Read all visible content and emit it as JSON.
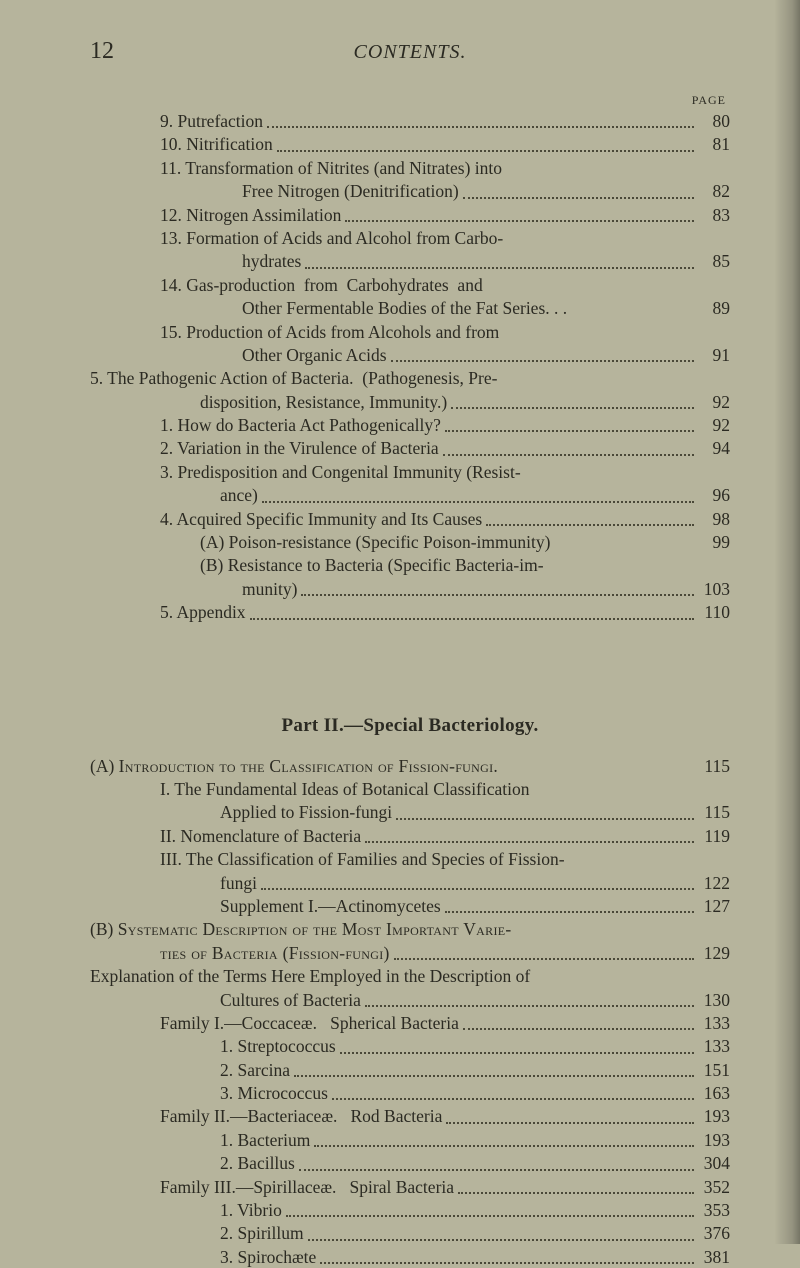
{
  "page_header": {
    "page_number": "12",
    "running_title": "CONTENTS.",
    "column_header": "PAGE"
  },
  "upper": [
    {
      "indent": "indent-a",
      "text": "9. Putrefaction",
      "page": "80"
    },
    {
      "indent": "indent-a",
      "text": "10. Nitrification",
      "page": "81"
    },
    {
      "indent": "indent-a",
      "text": "11. Transformation of Nitrites (and Nitrates) into",
      "nopage": true
    },
    {
      "indent": "indent-b",
      "text": "Free Nitrogen (Denitrification)",
      "page": "82"
    },
    {
      "indent": "indent-a",
      "text": "12. Nitrogen Assimilation",
      "page": "83"
    },
    {
      "indent": "indent-a",
      "text": "13. Formation of Acids and Alcohol from Carbo-",
      "nopage": true
    },
    {
      "indent": "indent-b",
      "text": "hydrates",
      "page": "85"
    },
    {
      "indent": "indent-a",
      "text": "14. Gas-production  from  Carbohydrates  and",
      "nopage": true
    },
    {
      "indent": "indent-b",
      "text": "Other Fermentable Bodies of the Fat Series. . .",
      "page": "89",
      "nodots": true
    },
    {
      "indent": "indent-a",
      "text": "15. Production of Acids from Alcohols and from",
      "nopage": true
    },
    {
      "indent": "indent-b",
      "text": "Other Organic Acids",
      "page": "91"
    },
    {
      "indent": "",
      "text": "5. The Pathogenic Action of Bacteria.  (Pathogenesis, Pre-",
      "nopage": true
    },
    {
      "indent": "indent-c",
      "text": "disposition, Resistance, Immunity.)",
      "page": "92"
    },
    {
      "indent": "indent-a2",
      "text": "1. How do Bacteria Act Pathogenically?",
      "page": "92"
    },
    {
      "indent": "indent-a2",
      "text": "2. Variation in the Virulence of Bacteria",
      "page": "94"
    },
    {
      "indent": "indent-a2",
      "text": "3. Predisposition and Congenital Immunity (Resist-",
      "nopage": true
    },
    {
      "indent": "indent-d",
      "text": "ance)",
      "page": "96"
    },
    {
      "indent": "indent-a2",
      "text": "4. Acquired Specific Immunity and Its Causes",
      "page": "98"
    },
    {
      "indent": "indent-c",
      "text": "(A) Poison-resistance (Specific Poison-immunity)",
      "page": "99",
      "nodots": true
    },
    {
      "indent": "indent-c",
      "text": "(B) Resistance to Bacteria (Specific Bacteria-im-",
      "nopage": true
    },
    {
      "indent": "indent-b",
      "text": "munity)",
      "page": "103"
    },
    {
      "indent": "indent-a2",
      "text": "5. Appendix",
      "page": "110"
    }
  ],
  "part_title": "Part II.—Special Bacteriology.",
  "lower": [
    {
      "indent": "",
      "text": "(A) <span class='sc'>Introduction to the Classification of Fission-fungi</span>.",
      "page": "115",
      "nodots": true,
      "html": true
    },
    {
      "indent": "indent-a2",
      "text": "I. The Fundamental Ideas of Botanical Classification",
      "nopage": true
    },
    {
      "indent": "indent-d",
      "text": "Applied to Fission-fungi",
      "page": "115"
    },
    {
      "indent": "indent-a2",
      "text": "II. Nomenclature of Bacteria",
      "page": "119"
    },
    {
      "indent": "indent-a",
      "text": "III. The Classification of Families and Species of Fission-",
      "nopage": true
    },
    {
      "indent": "indent-d",
      "text": "fungi",
      "page": "122"
    },
    {
      "indent": "indent-d",
      "text": "Supplement I.—Actinomycetes",
      "page": "127"
    },
    {
      "indent": "",
      "text": "(B) <span class='sc'>Systematic Description of the Most Important Varie-</span>",
      "nopage": true,
      "html": true
    },
    {
      "indent": "indent-a2",
      "text": "<span class='sc'>ties of Bacteria (Fission-fungi)</span>",
      "page": "129",
      "html": true
    },
    {
      "indent": "",
      "text": "Explanation of the Terms Here Employed in the Description of",
      "nopage": true
    },
    {
      "indent": "indent-d",
      "text": "Cultures of Bacteria",
      "page": "130"
    },
    {
      "indent": "indent-a",
      "text": "Family I.—Coccaceæ.   Spherical Bacteria",
      "page": "133"
    },
    {
      "indent": "indent-d",
      "text": "1. Streptococcus",
      "page": "133"
    },
    {
      "indent": "indent-d",
      "text": "2. Sarcina",
      "page": "151"
    },
    {
      "indent": "indent-d",
      "text": "3. Micrococcus",
      "page": "163"
    },
    {
      "indent": "indent-a",
      "text": "Family II.—Bacteriaceæ.   Rod Bacteria",
      "page": "193"
    },
    {
      "indent": "indent-d",
      "text": "1. Bacterium",
      "page": "193"
    },
    {
      "indent": "indent-d",
      "text": "2. Bacillus",
      "page": "304"
    },
    {
      "indent": "indent-a",
      "text": "Family III.—Spirillaceæ.   Spiral Bacteria",
      "page": "352"
    },
    {
      "indent": "indent-d",
      "text": "1. Vibrio",
      "page": "353"
    },
    {
      "indent": "indent-d",
      "text": "2. Spirillum",
      "page": "376"
    },
    {
      "indent": "indent-d",
      "text": "3. Spirochæte",
      "page": "381"
    }
  ]
}
